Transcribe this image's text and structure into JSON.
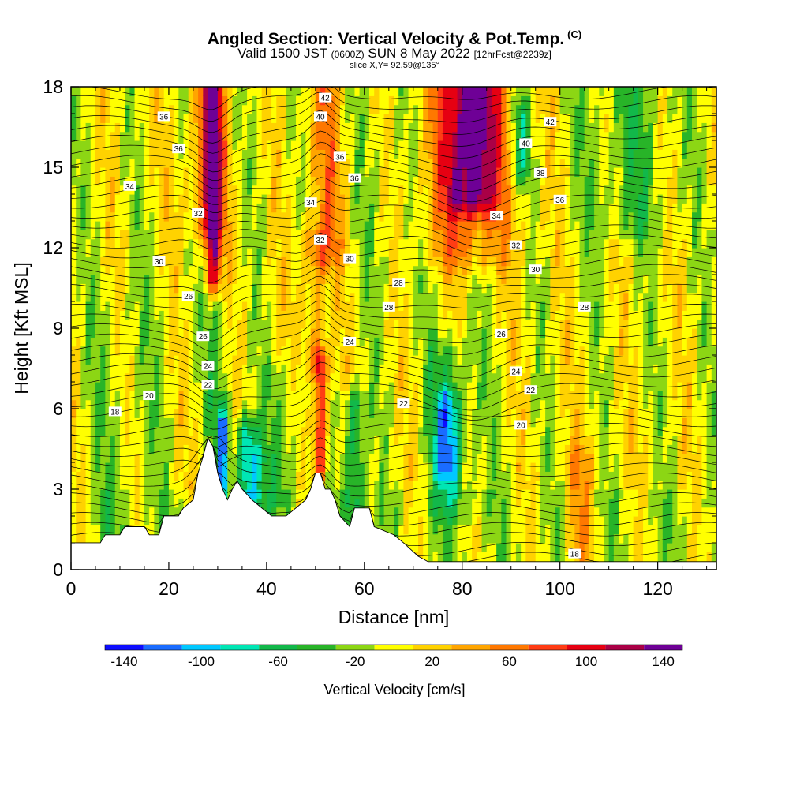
{
  "title": {
    "main": "Angled Section: Vertical Velocity & Pot.Temp.",
    "main_units": "(C)",
    "valid_a": "Valid 1500 JST",
    "valid_utc": "(0600Z)",
    "valid_b": "SUN 8 May 2022",
    "forecast": "[12hrFcst@2239z]",
    "slice": "slice X,Y= 92,59@135°"
  },
  "chart_data": {
    "type": "heatmap",
    "xlabel": "Distance [nm]",
    "ylabel": "Height [Kft MSL]",
    "xlim": [
      0,
      132
    ],
    "ylim": [
      0,
      18
    ],
    "x_ticks": [
      0,
      20,
      40,
      60,
      80,
      100,
      120
    ],
    "y_ticks": [
      0,
      3,
      6,
      9,
      12,
      15,
      18
    ],
    "colorbar": {
      "label": "Vertical Velocity [cm/s]",
      "bounds": [
        -150,
        -130,
        -110,
        -90,
        -70,
        -50,
        -30,
        -10,
        10,
        30,
        50,
        70,
        90,
        110,
        130,
        150
      ],
      "colors": [
        "#0d0dff",
        "#1a6cff",
        "#00c8ff",
        "#00e6b4",
        "#12b84a",
        "#28b428",
        "#8cd614",
        "#ffff00",
        "#ffd200",
        "#ffa500",
        "#ff7800",
        "#ff3c14",
        "#e60012",
        "#aa0046",
        "#6e0096"
      ],
      "tick_labels": [
        "-140",
        "-100",
        "-60",
        "-20",
        "20",
        "60",
        "100",
        "140"
      ],
      "tick_values": [
        -140,
        -100,
        -60,
        -20,
        20,
        60,
        100,
        140
      ]
    },
    "terrain": [
      [
        0,
        1
      ],
      [
        6,
        1
      ],
      [
        7,
        1.3
      ],
      [
        10,
        1.3
      ],
      [
        11,
        1.6
      ],
      [
        15,
        1.6
      ],
      [
        16,
        1.3
      ],
      [
        18,
        1.3
      ],
      [
        19,
        2
      ],
      [
        22,
        2
      ],
      [
        23,
        2.3
      ],
      [
        25,
        2.6
      ],
      [
        26,
        3.6
      ],
      [
        27,
        4.2
      ],
      [
        28,
        4.9
      ],
      [
        29,
        4.6
      ],
      [
        30,
        3.6
      ],
      [
        31,
        3
      ],
      [
        32,
        2.6
      ],
      [
        33,
        3
      ],
      [
        34,
        3.3
      ],
      [
        35,
        3
      ],
      [
        37,
        2.6
      ],
      [
        39,
        2.3
      ],
      [
        41,
        2
      ],
      [
        44,
        2
      ],
      [
        46,
        2.3
      ],
      [
        48,
        2.6
      ],
      [
        49,
        3
      ],
      [
        50,
        3.6
      ],
      [
        51,
        3.6
      ],
      [
        52,
        3
      ],
      [
        53,
        3
      ],
      [
        54,
        2.6
      ],
      [
        55,
        2
      ],
      [
        57,
        1.6
      ],
      [
        58,
        2.3
      ],
      [
        61,
        2.3
      ],
      [
        62,
        1.6
      ],
      [
        66,
        1.3
      ],
      [
        68,
        1
      ],
      [
        71,
        0.5
      ],
      [
        73,
        0.3
      ],
      [
        132,
        0.3
      ]
    ],
    "velocity_features": [
      {
        "x": 29,
        "ymin": 11,
        "ymax": 18,
        "width": 1.8,
        "w": 110
      },
      {
        "x": 28,
        "ymin": 13,
        "ymax": 18,
        "width": 4,
        "w": 60
      },
      {
        "x": 31,
        "ymin": 3.5,
        "ymax": 5.2,
        "width": 1.2,
        "w": -110
      },
      {
        "x": 36,
        "ymin": 3,
        "ymax": 5,
        "width": 2.2,
        "w": -90
      },
      {
        "x": 38,
        "ymin": 2.5,
        "ymax": 4,
        "width": 2.5,
        "w": -40
      },
      {
        "x": 51,
        "ymin": 4,
        "ymax": 7.5,
        "width": 1.3,
        "w": 110
      },
      {
        "x": 50,
        "ymin": 8,
        "ymax": 12,
        "width": 2.5,
        "w": 45
      },
      {
        "x": 58,
        "ymin": 2,
        "ymax": 6,
        "width": 2.2,
        "w": -70
      },
      {
        "x": 52,
        "ymin": 12,
        "ymax": 18,
        "width": 4,
        "w": 45
      },
      {
        "x": 65,
        "ymin": 11,
        "ymax": 18,
        "width": 6,
        "w": -15
      },
      {
        "x": 82,
        "ymin": 14,
        "ymax": 18,
        "width": 5,
        "w": 110
      },
      {
        "x": 81,
        "ymin": 12,
        "ymax": 18,
        "width": 10,
        "w": 55
      },
      {
        "x": 77,
        "ymin": 4,
        "ymax": 6,
        "width": 2.5,
        "w": -80
      },
      {
        "x": 78,
        "ymin": 2.5,
        "ymax": 8,
        "width": 5,
        "w": -40
      },
      {
        "x": 92,
        "ymin": 15,
        "ymax": 17,
        "width": 2,
        "w": -60
      },
      {
        "x": 114,
        "ymin": 13,
        "ymax": 18,
        "width": 9,
        "w": -30
      },
      {
        "x": 104,
        "ymin": 1,
        "ymax": 4,
        "width": 3,
        "w": 40
      },
      {
        "x": 10,
        "ymin": 2,
        "ymax": 10,
        "width": 7,
        "w": -15
      },
      {
        "x": 30,
        "ymin": 6,
        "ymax": 10,
        "width": 3,
        "w": -25
      },
      {
        "x": 44,
        "ymin": 3,
        "ymax": 7,
        "width": 4,
        "w": -25
      }
    ],
    "isotherm_labels": [
      {
        "text": "36",
        "x": 19,
        "y": 16.9
      },
      {
        "text": "36",
        "x": 22,
        "y": 15.7
      },
      {
        "text": "34",
        "x": 12,
        "y": 14.3
      },
      {
        "text": "32",
        "x": 26,
        "y": 13.3
      },
      {
        "text": "30",
        "x": 18,
        "y": 11.5
      },
      {
        "text": "26",
        "x": 24,
        "y": 10.2
      },
      {
        "text": "26",
        "x": 27,
        "y": 8.7
      },
      {
        "text": "24",
        "x": 28,
        "y": 7.6
      },
      {
        "text": "22",
        "x": 28,
        "y": 6.9
      },
      {
        "text": "20",
        "x": 16,
        "y": 6.5
      },
      {
        "text": "18",
        "x": 9,
        "y": 5.9
      },
      {
        "text": "42",
        "x": 52,
        "y": 17.6
      },
      {
        "text": "40",
        "x": 51,
        "y": 16.9
      },
      {
        "text": "36",
        "x": 55,
        "y": 15.4
      },
      {
        "text": "36",
        "x": 58,
        "y": 14.6
      },
      {
        "text": "34",
        "x": 49,
        "y": 13.7
      },
      {
        "text": "32",
        "x": 51,
        "y": 12.3
      },
      {
        "text": "30",
        "x": 57,
        "y": 11.6
      },
      {
        "text": "28",
        "x": 67,
        "y": 10.7
      },
      {
        "text": "28",
        "x": 65,
        "y": 9.8
      },
      {
        "text": "24",
        "x": 57,
        "y": 8.5
      },
      {
        "text": "22",
        "x": 68,
        "y": 6.2
      },
      {
        "text": "42",
        "x": 98,
        "y": 16.7
      },
      {
        "text": "40",
        "x": 93,
        "y": 15.9
      },
      {
        "text": "38",
        "x": 96,
        "y": 14.8
      },
      {
        "text": "36",
        "x": 100,
        "y": 13.8
      },
      {
        "text": "34",
        "x": 87,
        "y": 13.2
      },
      {
        "text": "32",
        "x": 91,
        "y": 12.1
      },
      {
        "text": "30",
        "x": 95,
        "y": 11.2
      },
      {
        "text": "28",
        "x": 105,
        "y": 9.8
      },
      {
        "text": "26",
        "x": 88,
        "y": 8.8
      },
      {
        "text": "24",
        "x": 91,
        "y": 7.4
      },
      {
        "text": "22",
        "x": 94,
        "y": 6.7
      },
      {
        "text": "20",
        "x": 92,
        "y": 5.4
      },
      {
        "text": "18",
        "x": 103,
        "y": 0.6
      }
    ]
  }
}
